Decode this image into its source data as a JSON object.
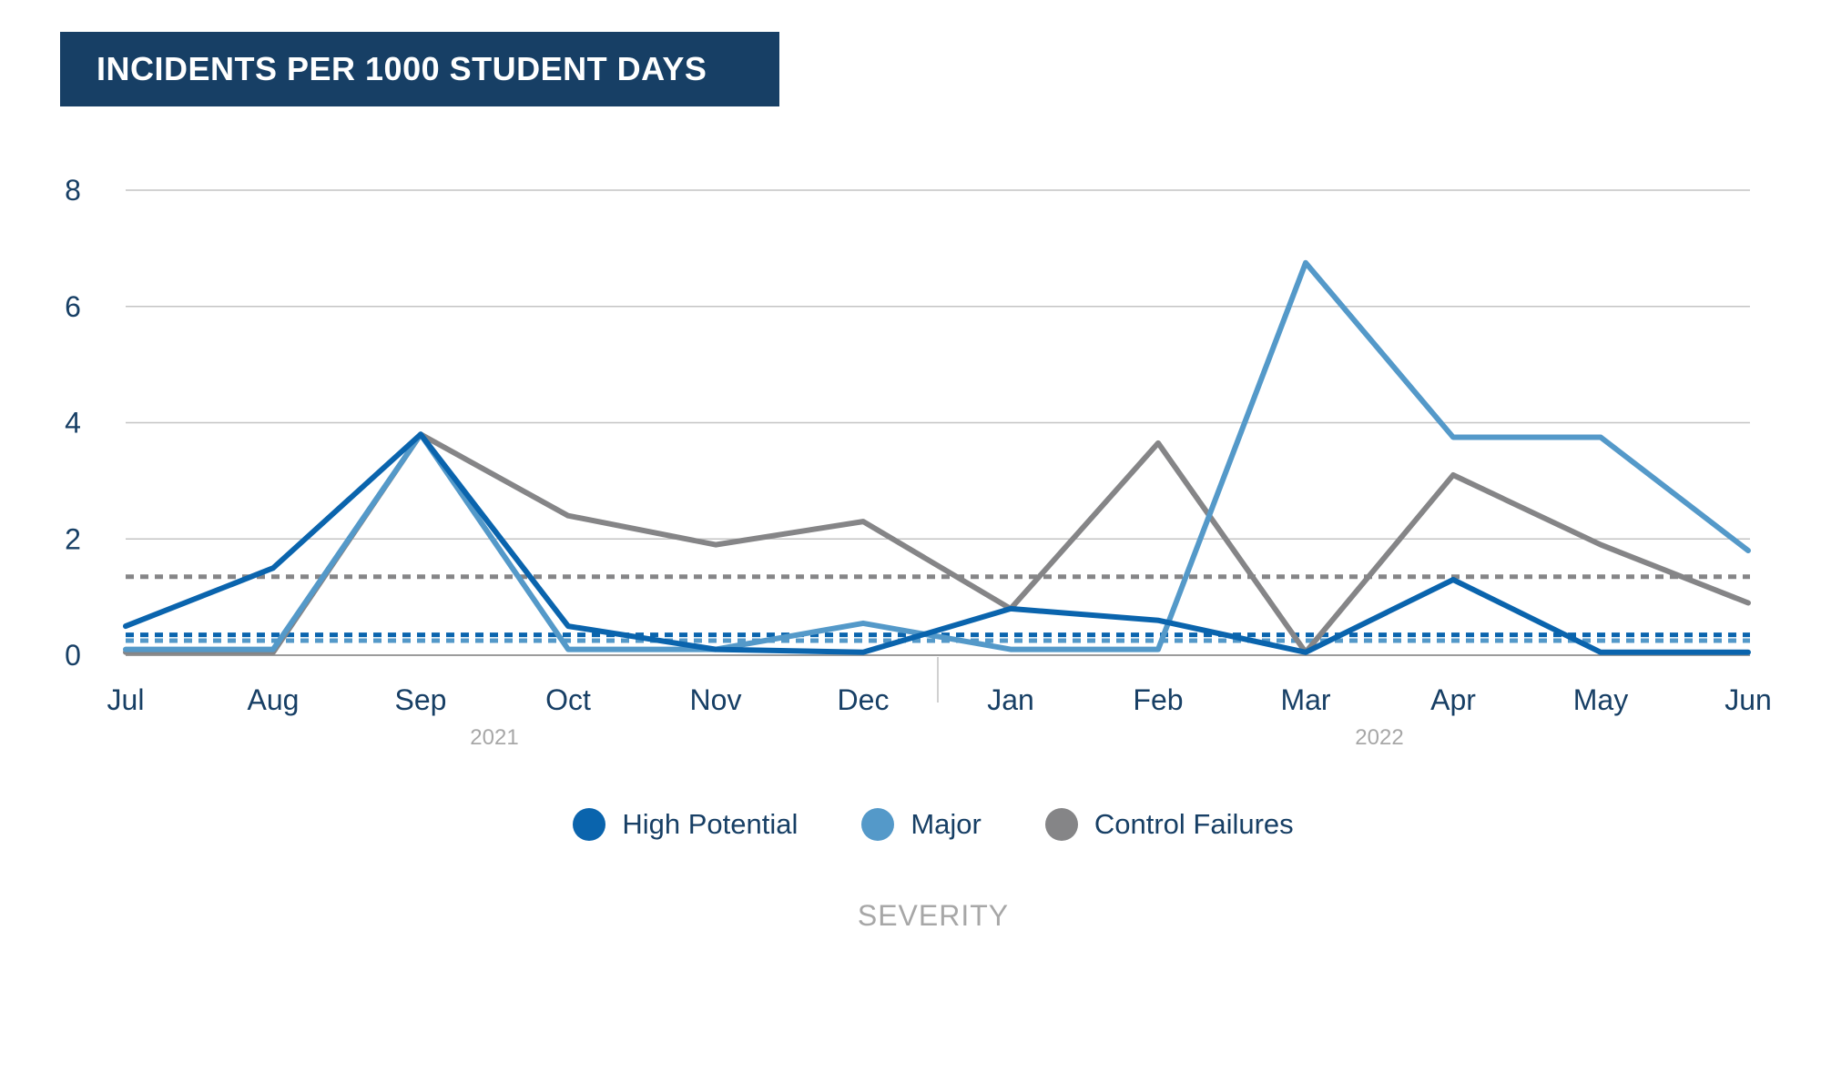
{
  "header": {
    "title": "INCIDENTS PER 1000 STUDENT DAYS"
  },
  "legend_title": "SEVERITY",
  "chart_data": {
    "type": "line",
    "title": "INCIDENTS PER 1000 STUDENT DAYS",
    "categories": [
      "Jul",
      "Aug",
      "Sep",
      "Oct",
      "Nov",
      "Dec",
      "Jan",
      "Feb",
      "Mar",
      "Apr",
      "May",
      "Jun"
    ],
    "year_groups": [
      {
        "label": "2021",
        "from": 0,
        "to": 5
      },
      {
        "label": "2022",
        "from": 6,
        "to": 11
      }
    ],
    "ylim": [
      0,
      8
    ],
    "yticks": [
      0,
      2,
      4,
      6,
      8
    ],
    "grid": true,
    "legend_position": "bottom",
    "series": [
      {
        "name": "High Potential",
        "color": "#0a64ad",
        "values": [
          0.5,
          1.5,
          3.8,
          0.5,
          0.1,
          0.05,
          0.8,
          0.6,
          0.05,
          1.3,
          0.05,
          0.05
        ],
        "average": 0.35
      },
      {
        "name": "Major",
        "color": "#5499c9",
        "values": [
          0.1,
          0.1,
          3.8,
          0.1,
          0.1,
          0.55,
          0.1,
          0.1,
          6.75,
          3.75,
          3.75,
          1.8
        ],
        "average": 0.25
      },
      {
        "name": "Control Failures",
        "color": "#858587",
        "values": [
          0.05,
          0.05,
          3.8,
          2.4,
          1.9,
          2.3,
          0.8,
          3.65,
          0.05,
          3.1,
          1.9,
          0.9
        ],
        "average": 1.35
      }
    ]
  }
}
